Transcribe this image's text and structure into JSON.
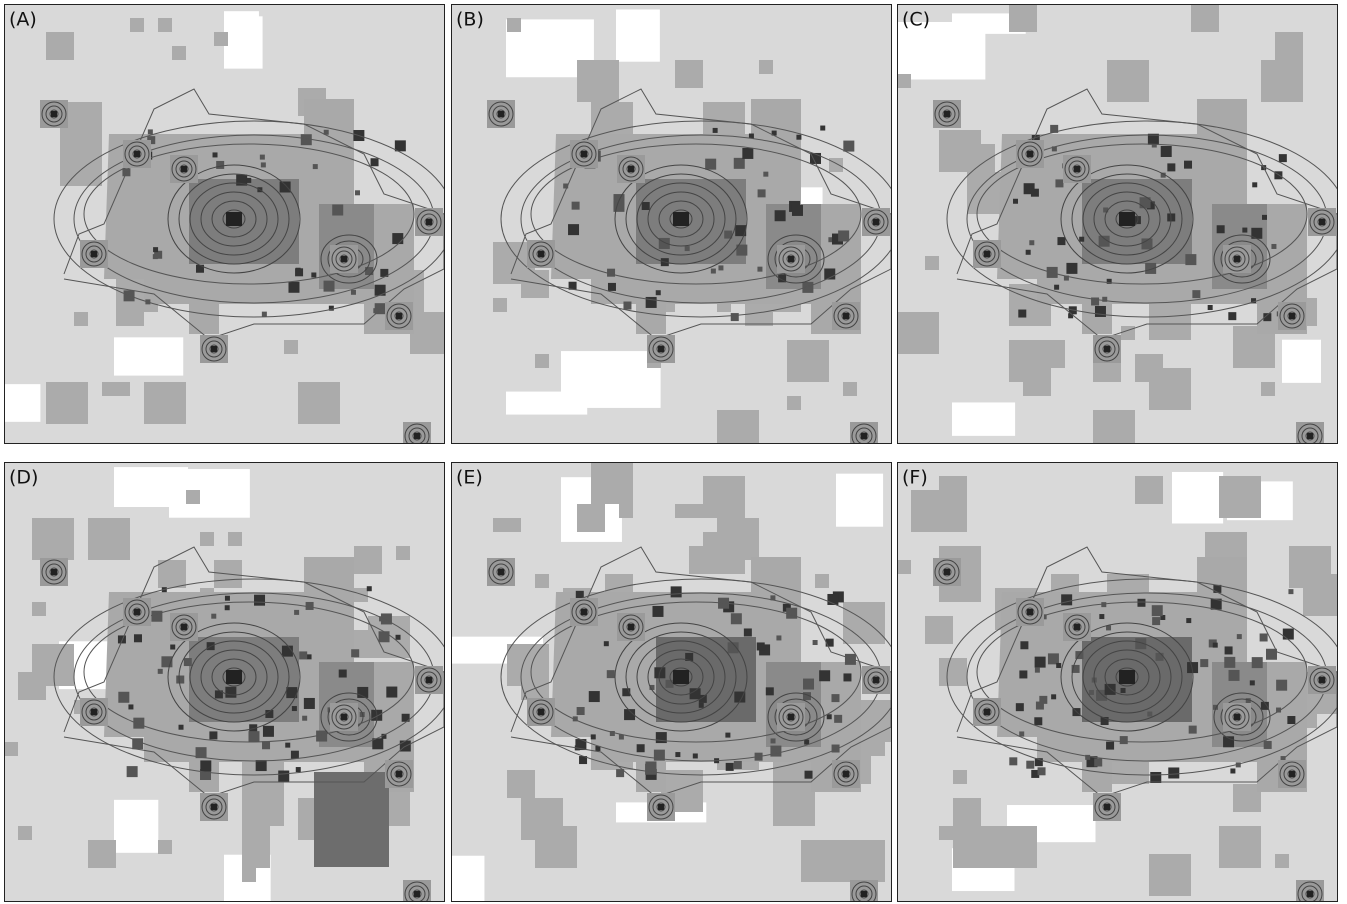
{
  "panels": [
    {
      "label": "(A)"
    },
    {
      "label": "(B)"
    },
    {
      "label": "(C)"
    },
    {
      "label": "(D)"
    },
    {
      "label": "(E)"
    },
    {
      "label": "(F)"
    }
  ]
}
